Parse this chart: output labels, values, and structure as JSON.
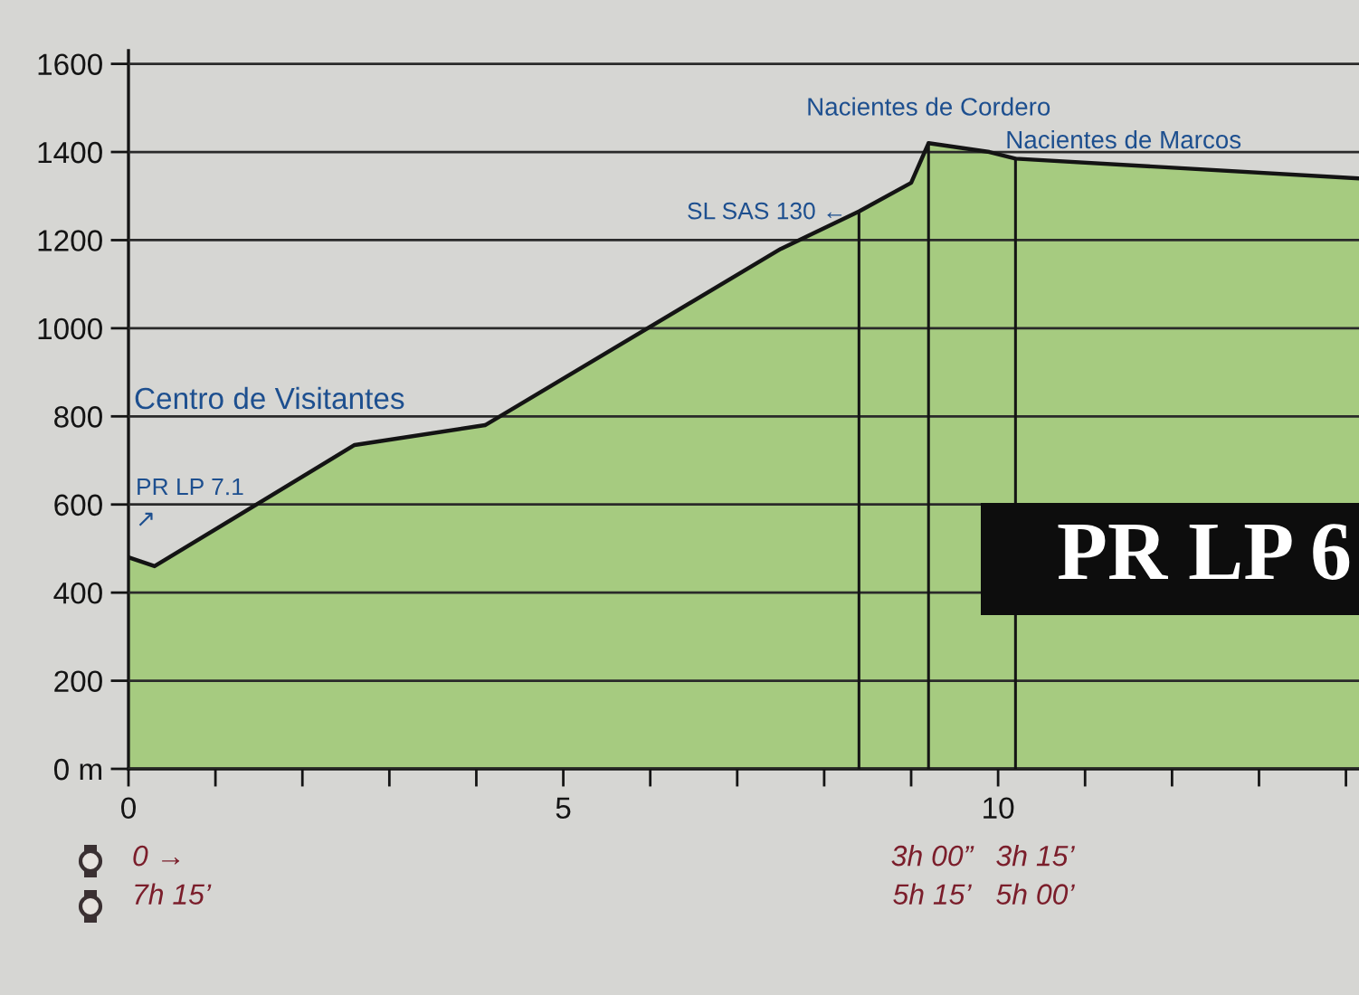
{
  "chart_data": {
    "type": "area",
    "title": "PR LP 6",
    "x": [
      0,
      0.3,
      2.6,
      4.1,
      7.5,
      8.4,
      9.0,
      9.2,
      9.9,
      10.2,
      14.15
    ],
    "series": [
      {
        "color": "#a6cb80",
        "values": [
          480,
          460,
          735,
          780,
          1180,
          1265,
          1330,
          1420,
          1400,
          1385,
          1340
        ]
      }
    ],
    "xlim": [
      0,
      14.15
    ],
    "xticks": [
      0,
      {
        "value": 1,
        "label": null
      },
      {
        "value": 2,
        "label": null
      },
      {
        "value": 3,
        "label": null
      },
      {
        "value": 4,
        "label": null
      },
      5,
      {
        "value": 6,
        "label": null
      },
      {
        "value": 7,
        "label": null
      },
      {
        "value": 8,
        "label": null
      },
      {
        "value": 9,
        "label": null
      },
      10,
      {
        "value": 11,
        "label": null
      },
      {
        "value": 12,
        "label": null
      },
      {
        "value": 13,
        "label": null
      },
      {
        "value": 14,
        "label": null
      }
    ],
    "ylim": [
      0,
      1630
    ],
    "yticks": [
      {
        "value": 0,
        "label": "0 m"
      },
      200,
      400,
      600,
      800,
      1000,
      1200,
      1400,
      1600
    ],
    "grid": "y",
    "ref_lines": [
      {
        "axis": "x",
        "value": 8.4,
        "label": "SL SAS 130 ←"
      },
      {
        "axis": "x",
        "value": 9.2,
        "label": "Nacientes de Cordero"
      },
      {
        "axis": "x",
        "value": 10.2,
        "label": "Nacientes de Marcos"
      }
    ],
    "annotations": [
      "Centro de Visitantes",
      "PR LP 7.1\n↗",
      "0 →\n7h 15’",
      "3h 00”\n5h 15’",
      "3h 15’\n5h 00’"
    ]
  }
}
